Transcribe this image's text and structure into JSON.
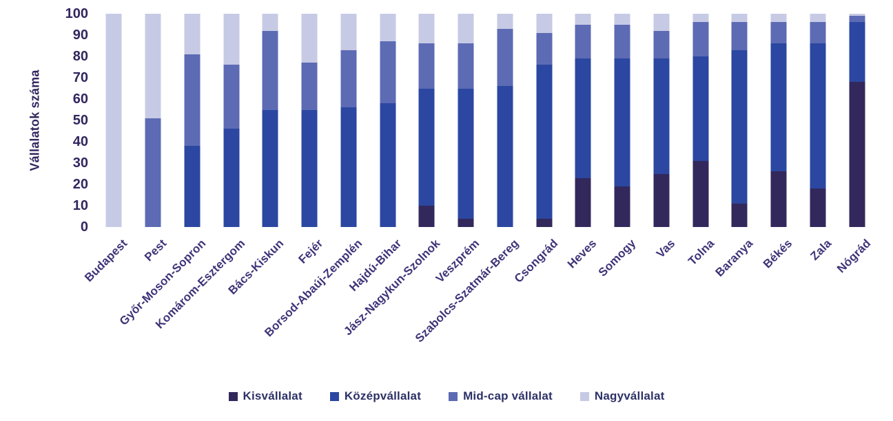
{
  "y_axis": {
    "title": "Vállalatok száma",
    "ticks": [
      0,
      10,
      20,
      30,
      40,
      50,
      60,
      70,
      80,
      90,
      100
    ]
  },
  "chart_data": {
    "type": "bar",
    "stacked": true,
    "title": "",
    "xlabel": "",
    "ylabel": "Vállalatok száma",
    "ylim": [
      0,
      100
    ],
    "yticks": [
      0,
      10,
      20,
      30,
      40,
      50,
      60,
      70,
      80,
      90,
      100
    ],
    "grid": false,
    "legend_position": "bottom",
    "categories": [
      "Budapest",
      "Pest",
      "Győr-Moson-Sopron",
      "Komárom-Esztergom",
      "Bács-Kiskun",
      "Fejér",
      "Borsod-Abaúj-Zemplén",
      "Hajdú-Bihar",
      "Jász-Nagykun-Szolnok",
      "Veszprém",
      "Szabolcs-Szatmár-Bereg",
      "Csongrád",
      "Heves",
      "Somogy",
      "Vas",
      "Tolna",
      "Baranya",
      "Békés",
      "Zala",
      "Nógrád"
    ],
    "series": [
      {
        "name": "Kisvállalat",
        "color": "#33285c",
        "values": [
          0,
          0,
          0,
          0,
          0,
          0,
          0,
          0,
          10,
          4,
          0,
          4,
          23,
          19,
          25,
          31,
          11,
          26,
          18,
          68
        ]
      },
      {
        "name": "Középvállalat",
        "color": "#2b47a1",
        "values": [
          0,
          0,
          38,
          46,
          55,
          55,
          56,
          58,
          55,
          61,
          66,
          72,
          56,
          60,
          54,
          49,
          72,
          60,
          68,
          28
        ]
      },
      {
        "name": "Mid-cap vállalat",
        "color": "#5d6bb4",
        "values": [
          0,
          51,
          43,
          30,
          37,
          22,
          27,
          29,
          21,
          21,
          27,
          15,
          16,
          16,
          13,
          16,
          13,
          10,
          10,
          3
        ]
      },
      {
        "name": "Nagyvállalat",
        "color": "#c7cae5",
        "values": [
          100,
          49,
          19,
          24,
          8,
          23,
          17,
          13,
          14,
          14,
          7,
          9,
          5,
          5,
          8,
          4,
          4,
          4,
          4,
          1
        ]
      }
    ]
  },
  "colors": {
    "y_tick_text": "#32265e",
    "x_label_text": "#3e3378",
    "legend_text": "#2d3166",
    "background": "#ffffff"
  }
}
